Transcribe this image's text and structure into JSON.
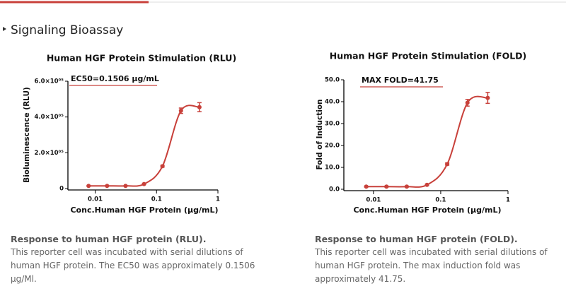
{
  "page": {
    "heading": "Signaling Bioassay",
    "captions": [
      {
        "title": "Response to human HGF protein (RLU).",
        "text": "This reporter cell was incubated with serial dilutions of human HGF protein. The EC50 was approximately 0.1506 μg/Ml."
      },
      {
        "title": "Response to human HGF protein (FOLD).",
        "text": "This reporter cell was incubated with serial dilutions of human HGF protein. The max induction fold was approximately 41.75."
      }
    ]
  },
  "chart_data": [
    {
      "type": "scatter",
      "title": "Human HGF Protein Stimulation (RLU)",
      "x_label": "Conc.Human HGF Protein (μg/mL)",
      "y_label": "Bioluminescence (RLU)",
      "annotation": "EC50=0.1506 μg/mL",
      "log_x": true,
      "color": "#c8403a",
      "x": [
        0.0078125,
        0.015625,
        0.03125,
        0.0625,
        0.125,
        0.25,
        0.5
      ],
      "values": [
        15000,
        15000,
        15000,
        25000,
        125000,
        435000,
        455000
      ],
      "errors": [
        1000,
        1000,
        1000,
        2000,
        5000,
        15000,
        25000
      ],
      "xlim": [
        0.004,
        1
      ],
      "xticks": [
        0.01,
        0.1,
        1
      ],
      "ylim": [
        0,
        600000
      ],
      "yticks": [
        0,
        {
          "value": 200000,
          "label": "2.0×10⁰⁵"
        },
        {
          "value": 400000,
          "label": "4.0×10⁰⁵"
        },
        {
          "value": 600000,
          "label": "6.0×10⁰⁵"
        }
      ]
    },
    {
      "type": "scatter",
      "title": "Human HGF Protein Stimulation (FOLD)",
      "x_label": "Conc.Human HGF Protein (μg/mL)",
      "y_label": "Fold of Induction",
      "annotation": "MAX FOLD=41.75",
      "log_x": true,
      "color": "#c8403a",
      "x": [
        0.0078125,
        0.015625,
        0.03125,
        0.0625,
        0.125,
        0.25,
        0.5
      ],
      "values": [
        1.2,
        1.2,
        1.2,
        2,
        11.5,
        39.5,
        41.75
      ],
      "errors": [
        0.2,
        0.2,
        0.2,
        0.3,
        0.5,
        1.5,
        2.5
      ],
      "xlim": [
        0.004,
        1
      ],
      "xticks": [
        0.01,
        0.1,
        1
      ],
      "ylim": [
        0,
        50
      ],
      "yticks": [
        {
          "value": 0,
          "label": "0.0"
        },
        {
          "value": 10,
          "label": "10.0"
        },
        {
          "value": 20,
          "label": "20.0"
        },
        {
          "value": 30,
          "label": "30.0"
        },
        {
          "value": 40,
          "label": "40.0"
        },
        {
          "value": 50,
          "label": "50.0"
        }
      ]
    }
  ]
}
